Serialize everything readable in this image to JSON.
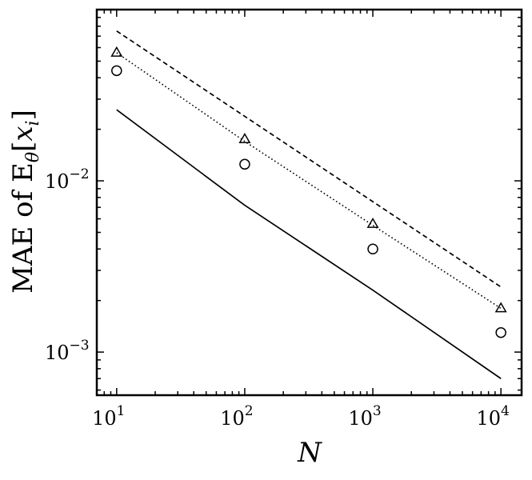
{
  "chart_data": {
    "type": "line",
    "title": "",
    "xlabel": "N",
    "ylabel": {
      "prefix": "MAE of E",
      "subscript": "θ",
      "bracket_open": "[",
      "var": "x",
      "var_sub": "i",
      "bracket_close": "]"
    },
    "xscale": "log",
    "yscale": "log",
    "xlim": [
      7,
      14500
    ],
    "ylim": [
      0.00056,
      0.1
    ],
    "grid": false,
    "legend": null,
    "x_ticks": [
      {
        "value": 10,
        "base": "10",
        "exp": "1"
      },
      {
        "value": 100,
        "base": "10",
        "exp": "2"
      },
      {
        "value": 1000,
        "base": "10",
        "exp": "3"
      },
      {
        "value": 10000,
        "base": "10",
        "exp": "4"
      }
    ],
    "y_ticks": [
      {
        "value": 0.01,
        "base": "10",
        "exp": "−2"
      },
      {
        "value": 0.001,
        "base": "10",
        "exp": "−3"
      }
    ],
    "series": [
      {
        "style": "dashed",
        "x": [
          10,
          10000
        ],
        "y": [
          0.075,
          0.0024
        ]
      },
      {
        "style": "dotted",
        "x": [
          10,
          100,
          1000,
          10000
        ],
        "y": [
          0.056,
          0.017,
          0.0055,
          0.0018
        ]
      },
      {
        "style": "solid",
        "x": [
          10,
          100,
          1000,
          10000
        ],
        "y": [
          0.026,
          0.0072,
          0.0023,
          0.0007
        ]
      },
      {
        "style": "markers",
        "marker": "triangle",
        "x": [
          10,
          100,
          1000,
          10000
        ],
        "y": [
          0.056,
          0.0175,
          0.0056,
          0.0018
        ]
      },
      {
        "style": "markers",
        "marker": "circle",
        "x": [
          10,
          100,
          1000,
          10000
        ],
        "y": [
          0.044,
          0.0125,
          0.004,
          0.0013
        ]
      }
    ]
  }
}
